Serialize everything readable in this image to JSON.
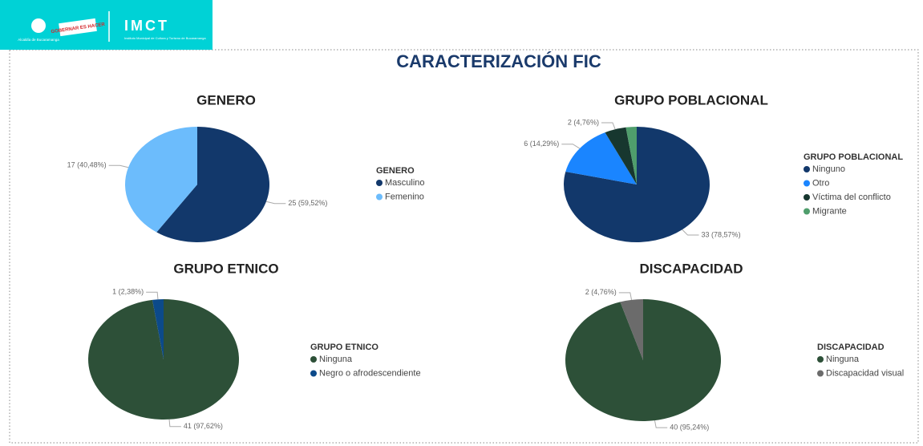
{
  "header": {
    "logo_city": "Alcaldía de Bucaramanga",
    "logo_slogan": "GOBERNAR ES HACER",
    "logo_text": "IMCT",
    "logo_subtitle": "Instituto Municipal de Cultura y Turismo de Bucaramanga"
  },
  "title": "CARACTERIZACIÓN FIC",
  "chart_data": [
    {
      "type": "pie",
      "title": "GENERO",
      "legend_title": "GENERO",
      "categories": [
        "Masculino",
        "Femenino"
      ],
      "values": [
        25,
        17
      ],
      "value_labels": [
        "25 (59,52%)",
        "17 (40,48%)"
      ],
      "colors": [
        "#12386b",
        "#6cbcfc"
      ]
    },
    {
      "type": "pie",
      "title": "GRUPO POBLACIONAL",
      "legend_title": "GRUPO POBLACIONAL",
      "categories": [
        "Ninguno",
        "Otro",
        "Víctima del conflicto",
        "Migrante"
      ],
      "values": [
        33,
        6,
        2,
        1
      ],
      "value_labels": [
        "33 (78,57%)",
        "6 (14,29%)",
        "2 (4,76%)",
        null
      ],
      "colors": [
        "#12386b",
        "#1a85ff",
        "#17372f",
        "#4f9e6c"
      ]
    },
    {
      "type": "pie",
      "title": "GRUPO ETNICO",
      "legend_title": "GRUPO ETNICO",
      "categories": [
        "Ninguna",
        "Negro o afrodescendiente"
      ],
      "values": [
        41,
        1
      ],
      "value_labels": [
        "41 (97,62%)",
        "1 (2,38%)"
      ],
      "colors": [
        "#2d5038",
        "#0c4a8a"
      ]
    },
    {
      "type": "pie",
      "title": "DISCAPACIDAD",
      "legend_title": "DISCAPACIDAD",
      "categories": [
        "Ninguna",
        "Discapacidad visual"
      ],
      "values": [
        40,
        2
      ],
      "value_labels": [
        "40 (95,24%)",
        "2 (4,76%)"
      ],
      "colors": [
        "#2d5038",
        "#6b6b6b"
      ]
    }
  ]
}
